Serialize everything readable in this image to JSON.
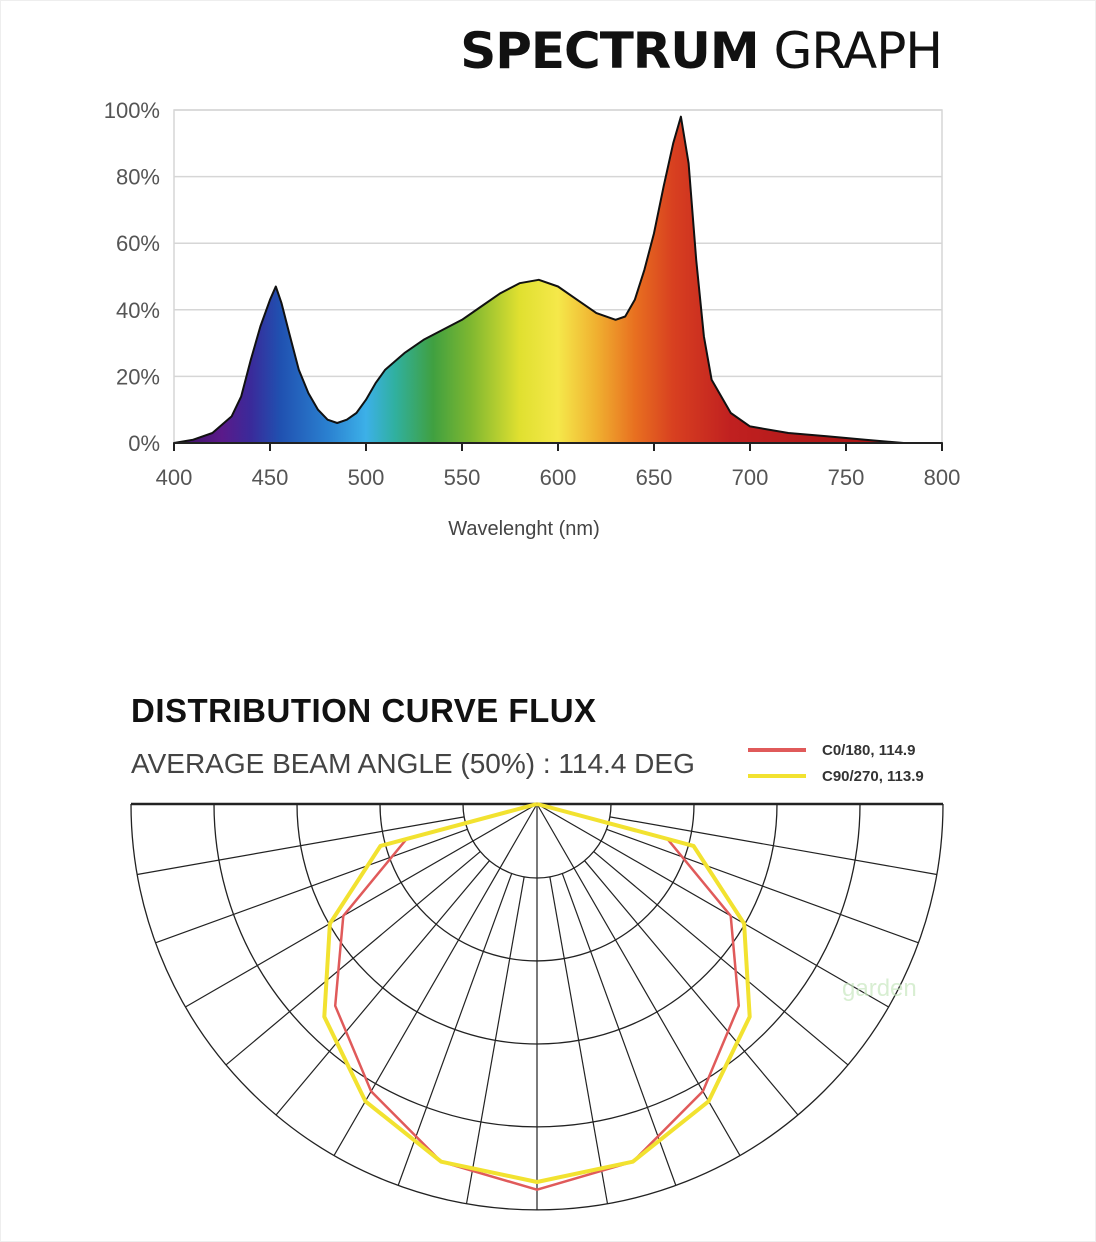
{
  "spectrum": {
    "title_bold": "SPECTRUM",
    "title_light": "GRAPH"
  },
  "distribution": {
    "title": "DISTRIBUTION CURVE FLUX",
    "beam_angle": "AVERAGE BEAM ANGLE  (50%) : 114.4 DEG",
    "legend": [
      {
        "label": "C0/180, 114.9",
        "color": "#e05a5a"
      },
      {
        "label": "C90/270, 113.9",
        "color": "#f2e230"
      }
    ]
  },
  "watermark": "garden",
  "chart_data": [
    {
      "type": "area",
      "title": "SPECTRUM GRAPH",
      "xlabel": "Wavelenght (nm)",
      "ylabel": "",
      "xlim": [
        400,
        800
      ],
      "ylim": [
        0,
        100
      ],
      "x_ticks": [
        "400",
        "450",
        "500",
        "550",
        "600",
        "650",
        "700",
        "750",
        "800"
      ],
      "y_ticks": [
        "0%",
        "20%",
        "40%",
        "60%",
        "80%",
        "100%"
      ],
      "grid": true,
      "x": [
        400,
        410,
        420,
        430,
        435,
        440,
        445,
        450,
        453,
        456,
        460,
        465,
        470,
        475,
        480,
        485,
        490,
        495,
        500,
        505,
        510,
        520,
        530,
        540,
        550,
        560,
        570,
        580,
        590,
        600,
        610,
        620,
        630,
        635,
        640,
        645,
        650,
        655,
        660,
        664,
        668,
        672,
        676,
        680,
        690,
        700,
        720,
        740,
        760,
        780,
        800
      ],
      "y": [
        0,
        1,
        3,
        8,
        14,
        25,
        35,
        43,
        47,
        42,
        33,
        22,
        15,
        10,
        7,
        6,
        7,
        9,
        13,
        18,
        22,
        27,
        31,
        34,
        37,
        41,
        45,
        48,
        49,
        47,
        43,
        39,
        37,
        38,
        43,
        52,
        63,
        77,
        90,
        98,
        84,
        55,
        32,
        19,
        9,
        5,
        3,
        2,
        1,
        0,
        0
      ]
    },
    {
      "type": "polar",
      "title": "DISTRIBUTION CURVE FLUX",
      "series": [
        {
          "name": "C0/180, 114.9",
          "color": "#e05a5a",
          "angles": [
            0,
            15,
            30,
            45,
            60,
            75,
            90
          ],
          "values": [
            100,
            96,
            86,
            74,
            58,
            35,
            0
          ]
        },
        {
          "name": "C90/270, 113.9",
          "color": "#f2e230",
          "angles": [
            0,
            15,
            30,
            45,
            60,
            75,
            90
          ],
          "values": [
            98,
            96,
            89,
            78,
            62,
            42,
            0
          ]
        }
      ]
    }
  ]
}
